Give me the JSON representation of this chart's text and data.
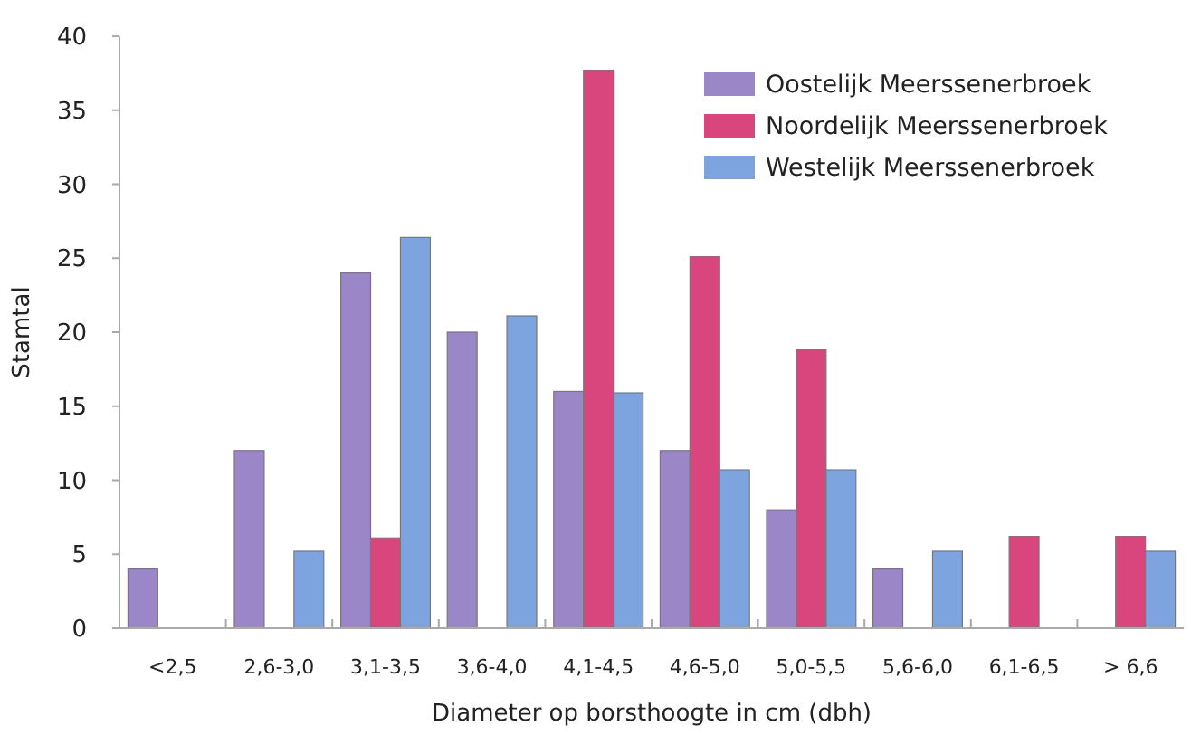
{
  "chart_data": {
    "type": "bar",
    "xlabel": "Diameter op borsthoogte in cm (dbh)",
    "ylabel": "Stamtal",
    "categories": [
      "<2,5",
      "2,6-3,0",
      "3,1-3,5",
      "3,6-4,0",
      "4,1-4,5",
      "4,6-5,0",
      "5,0-5,5",
      "5,6-6,0",
      "6,1-6,5",
      "> 6,6"
    ],
    "series": [
      {
        "name": "Oostelijk Meerssenerbroek",
        "color": "#9b86c8",
        "values": [
          4,
          12,
          24,
          20,
          16,
          12,
          8,
          4,
          null,
          null
        ]
      },
      {
        "name": "Noordelijk Meerssenerbroek",
        "color": "#d9467e",
        "values": [
          null,
          null,
          6.1,
          null,
          37.7,
          25.1,
          18.8,
          null,
          6.2,
          6.2
        ]
      },
      {
        "name": "Westelijk Meerssenerbroek",
        "color": "#7ea4e0",
        "values": [
          null,
          5.2,
          26.4,
          21.1,
          15.9,
          10.7,
          10.7,
          5.2,
          null,
          5.2
        ]
      }
    ],
    "ylim": [
      0,
      40
    ],
    "yticks": [
      0,
      5,
      10,
      15,
      20,
      25,
      30,
      35,
      40
    ],
    "grid": false,
    "legend": "top right"
  }
}
